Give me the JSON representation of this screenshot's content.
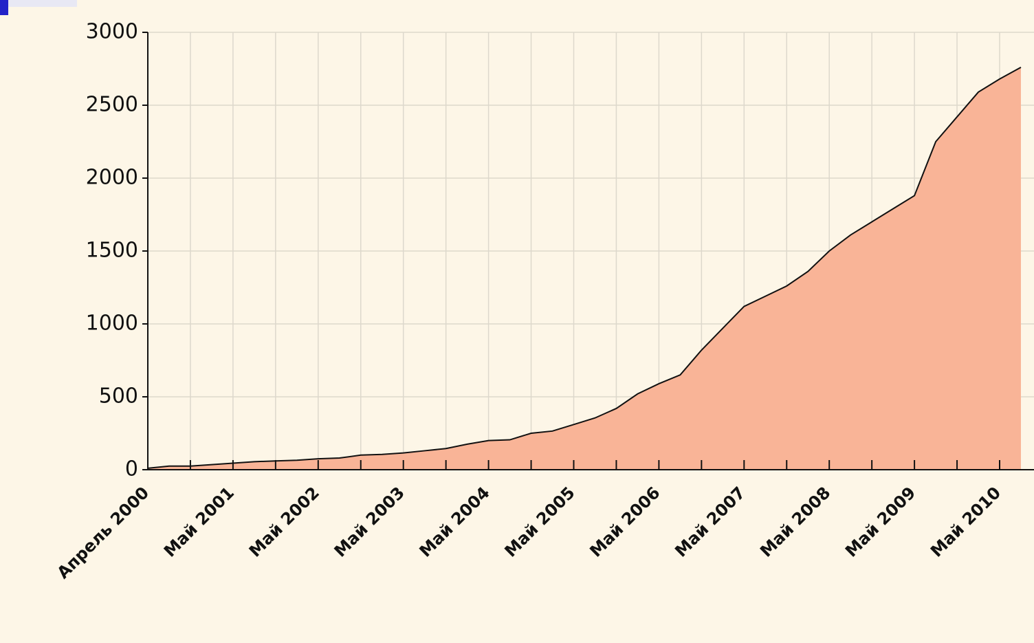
{
  "chart_data": {
    "type": "area",
    "categories": [
      "Апрель 2000",
      null,
      null,
      null,
      "Май 2001",
      null,
      null,
      null,
      "Май 2002",
      null,
      null,
      null,
      "Май 2003",
      null,
      null,
      null,
      "Май 2004",
      null,
      null,
      null,
      "Май 2005",
      null,
      null,
      null,
      "Май 2006",
      null,
      null,
      null,
      "Май 2007",
      null,
      null,
      null,
      "Май 2008",
      null,
      null,
      null,
      "Май 2009",
      null,
      null,
      null,
      "Май 2010",
      null
    ],
    "values": [
      10,
      25,
      25,
      35,
      45,
      55,
      60,
      65,
      75,
      80,
      100,
      105,
      115,
      130,
      145,
      175,
      200,
      205,
      250,
      265,
      310,
      355,
      420,
      520,
      590,
      650,
      820,
      970,
      1120,
      1190,
      1260,
      1360,
      1500,
      1610,
      1700,
      1790,
      1880,
      2250,
      2420,
      2590,
      2680,
      2760
    ],
    "color": "#f9b497",
    "ylim": [
      0,
      3000
    ],
    "yticks": [
      0,
      500,
      1000,
      1500,
      2000,
      2500,
      3000
    ],
    "grid": true
  }
}
